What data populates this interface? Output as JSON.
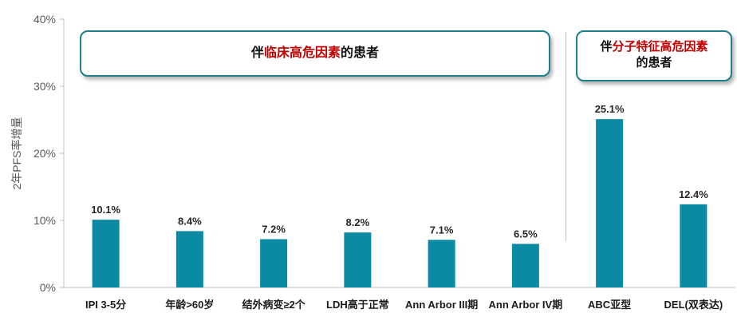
{
  "chart_data": {
    "type": "bar",
    "ylabel": "2年PFS率增量",
    "ylim": [
      0,
      40
    ],
    "yticks": [
      "0%",
      "10%",
      "20%",
      "30%",
      "40%"
    ],
    "categories": [
      "IPI 3-5分",
      "年龄>60岁",
      "结外病变≥2个",
      "LDH高于正常",
      "Ann Arbor III期",
      "Ann Arbor IV期",
      "ABC亚型",
      "DEL(双表达)"
    ],
    "values": [
      10.1,
      8.4,
      7.2,
      8.2,
      7.1,
      6.5,
      25.1,
      12.4
    ],
    "data_labels": [
      "10.1%",
      "8.4%",
      "7.2%",
      "8.2%",
      "7.1%",
      "6.5%",
      "25.1%",
      "12.4%"
    ],
    "bar_color": "#0a8aa3",
    "grid": false
  },
  "callouts": {
    "left": {
      "prefix": "伴",
      "highlight": "临床高危因素",
      "suffix": "的患者"
    },
    "right": {
      "prefix": "伴",
      "highlight": "分子特征高危因素",
      "suffix": "的患者"
    },
    "border_color": "#1b7f8c",
    "highlight_color": "#c00000"
  }
}
